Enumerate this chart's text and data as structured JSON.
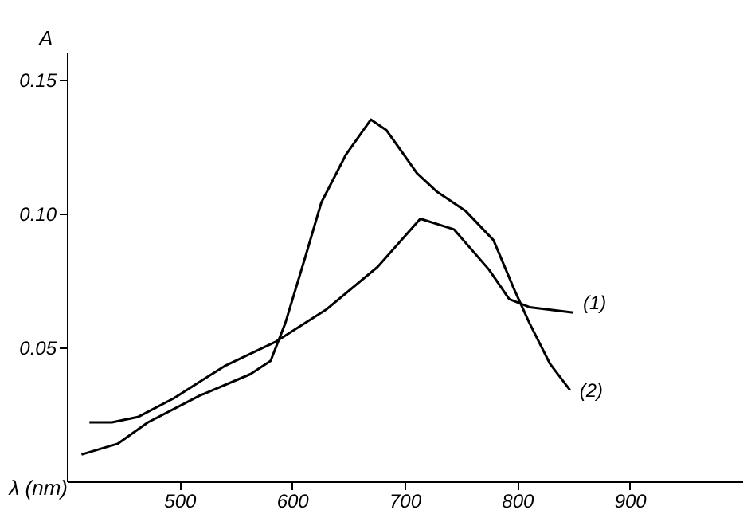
{
  "chart_data": {
    "type": "line",
    "xlabel": "λ (nm)",
    "ylabel": "A",
    "xlim": [
      400,
      1000
    ],
    "xticks": [
      500,
      600,
      700,
      800,
      900
    ],
    "ylim": [
      0,
      0.16
    ],
    "yticks": [
      0.05,
      {
        "value": 0.1,
        "label": "0.10"
      },
      0.15
    ],
    "grid": false,
    "marker": "none",
    "line_style": "solid",
    "series": [
      {
        "name": "(1)",
        "color": "#000000",
        "x": [
          420,
          440,
          463,
          495,
          540,
          585,
          630,
          676,
          714,
          744,
          775,
          793,
          811,
          850
        ],
        "values": [
          0.022,
          0.022,
          0.024,
          0.031,
          0.043,
          0.052,
          0.064,
          0.08,
          0.098,
          0.094,
          0.079,
          0.068,
          0.065,
          0.063
        ]
      },
      {
        "name": "(2)",
        "color": "#000000",
        "x": [
          413,
          445,
          472,
          518,
          563,
          581,
          594,
          612,
          626,
          648,
          670,
          684,
          711,
          729,
          754,
          779,
          797,
          811,
          829,
          847
        ],
        "values": [
          0.01,
          0.014,
          0.022,
          0.032,
          0.04,
          0.045,
          0.059,
          0.084,
          0.104,
          0.122,
          0.135,
          0.131,
          0.115,
          0.108,
          0.101,
          0.09,
          0.072,
          0.059,
          0.044,
          0.034
        ]
      }
    ]
  }
}
